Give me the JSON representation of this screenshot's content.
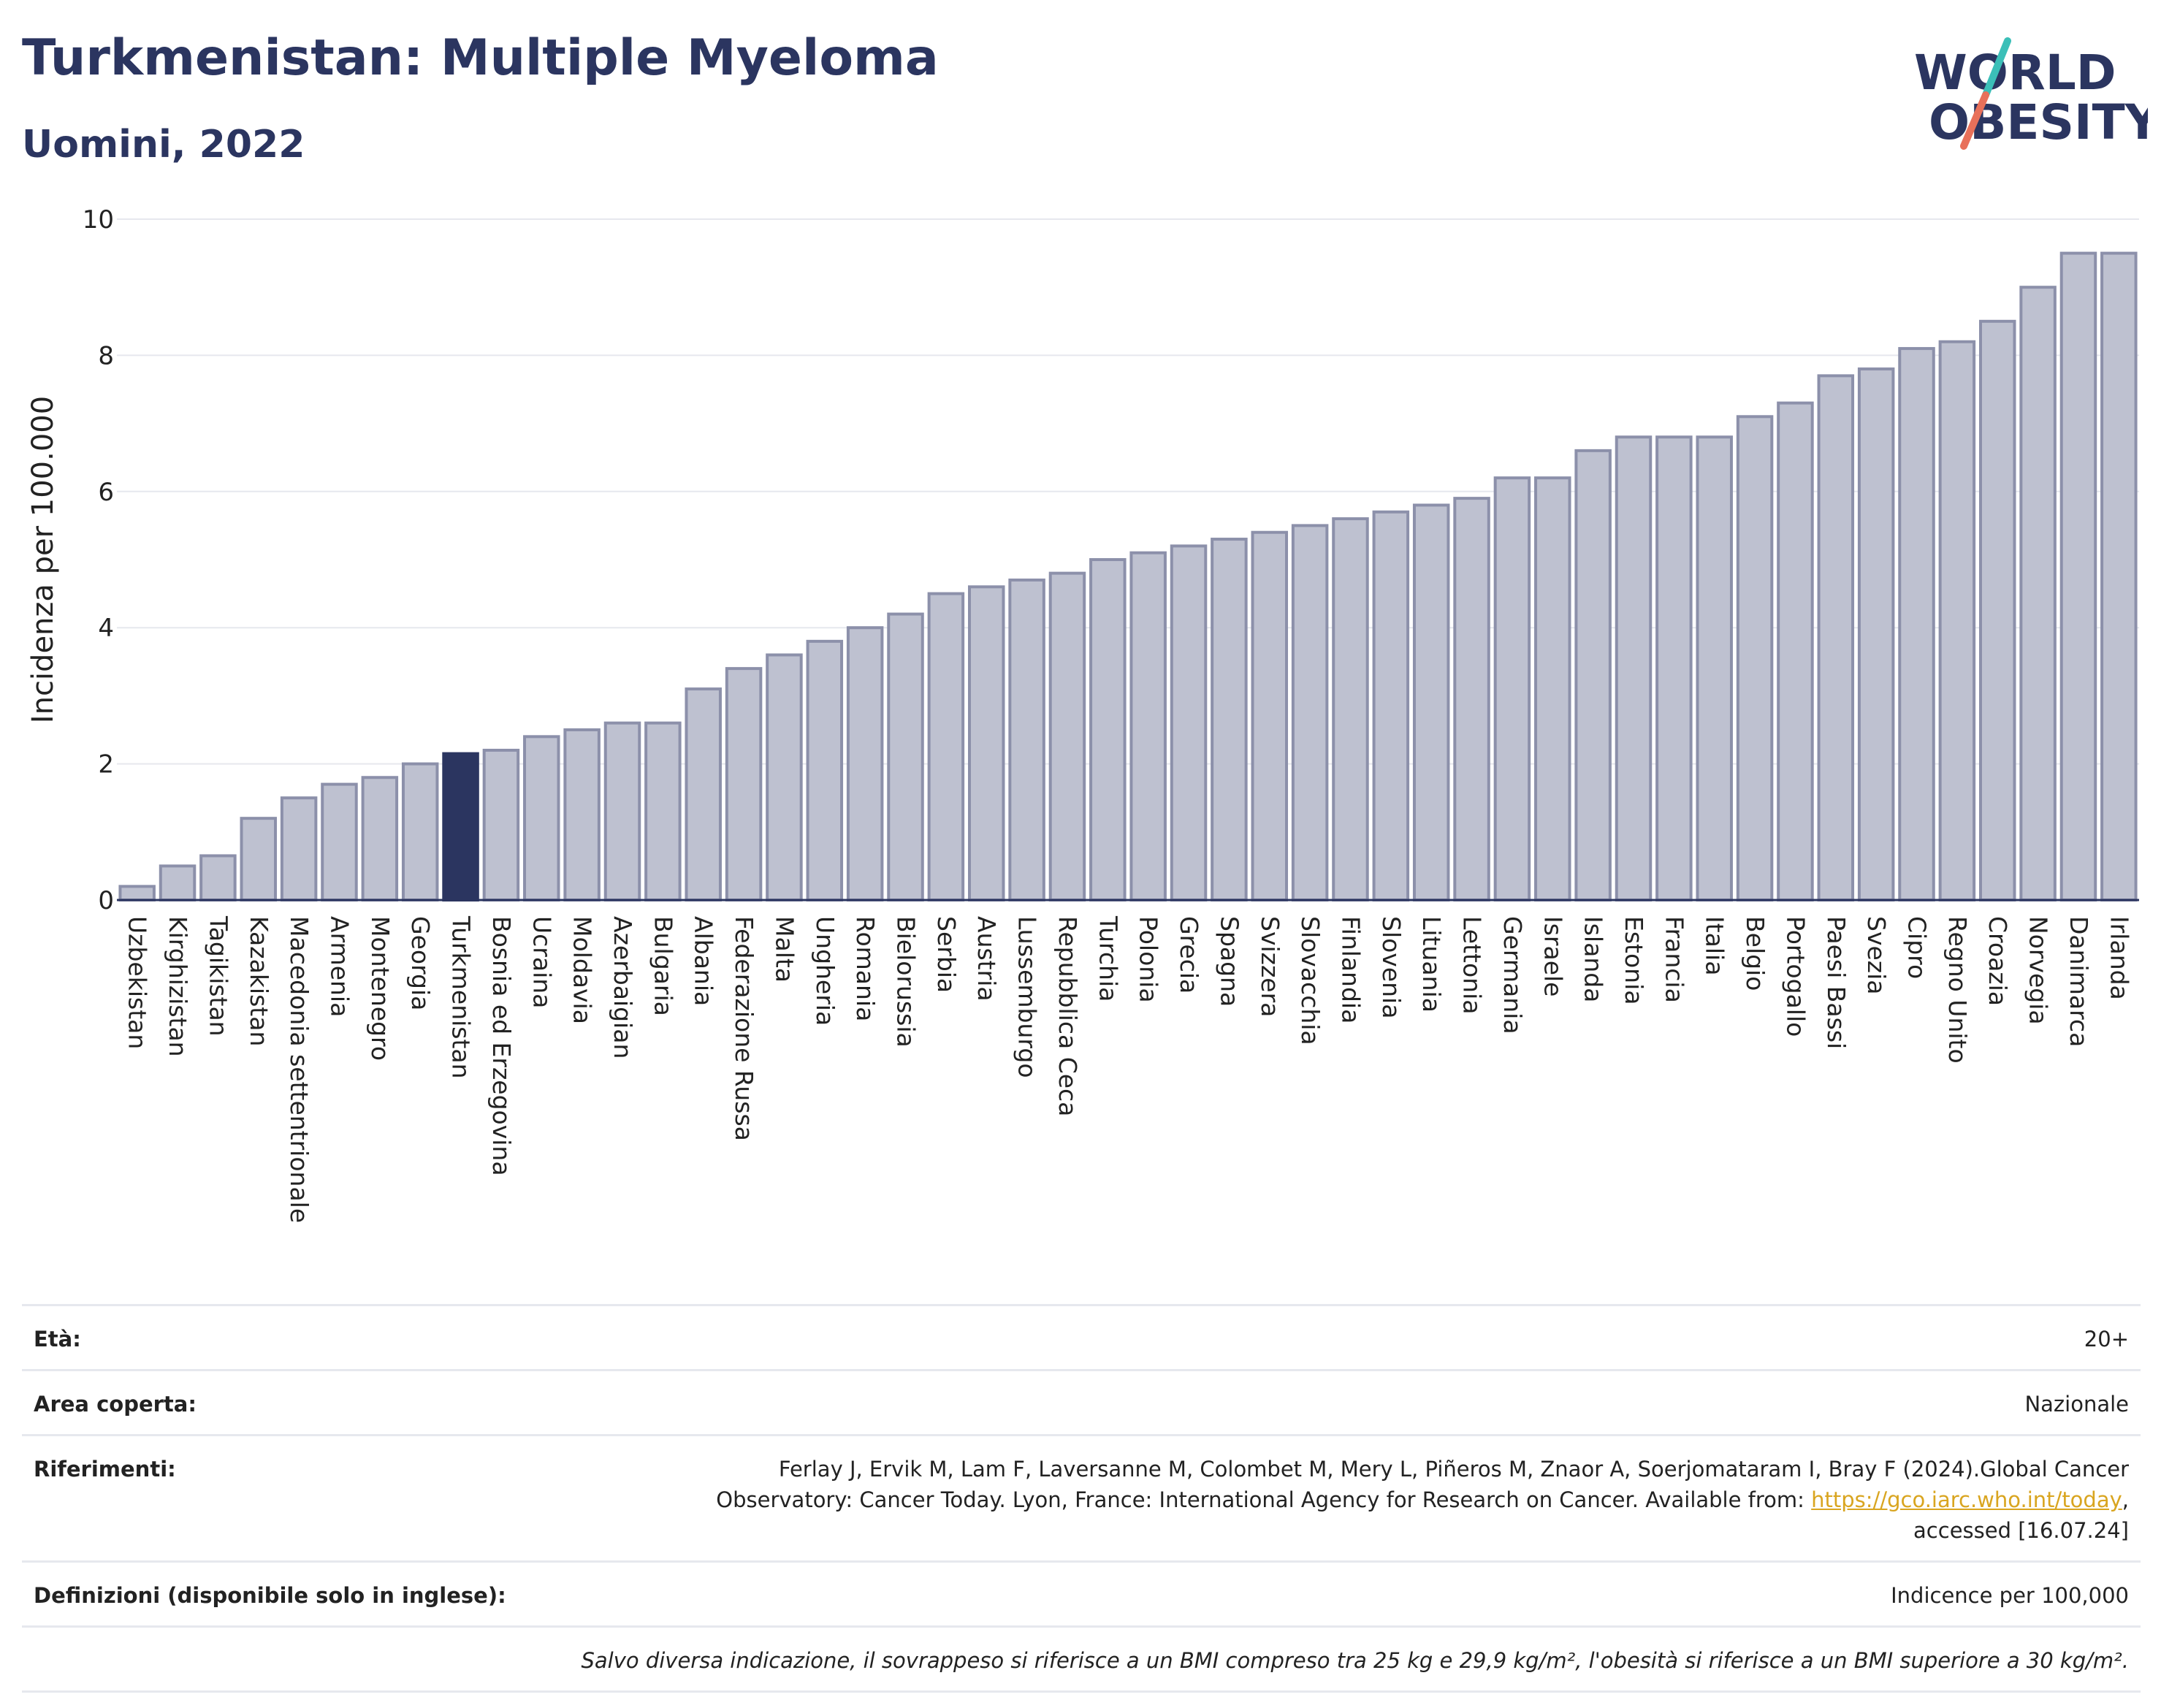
{
  "header": {
    "title": "Turkmenistan: Multiple Myeloma",
    "subtitle": "Uomini, 2022"
  },
  "logo": {
    "line1": "WORLD",
    "line2": "OBESITY"
  },
  "colors": {
    "bar_default": "#bec1d0",
    "bar_border": "#8c90aa",
    "bar_highlight": "#2b3560",
    "title": "#2b3560",
    "link": "#d9a520",
    "logo_slash_teal": "#3bbfb8",
    "logo_slash_red": "#e8705a"
  },
  "chart_data": {
    "type": "bar",
    "ylabel": "Incidenza per 100.000",
    "xlabel": "",
    "ylim": [
      0,
      10
    ],
    "yticks": [
      0,
      2,
      4,
      6,
      8,
      10
    ],
    "grid": true,
    "highlight": "Turkmenistan",
    "categories": [
      "Uzbekistan",
      "Kirghizistan",
      "Tagikistan",
      "Kazakistan",
      "Macedonia settentrionale",
      "Armenia",
      "Montenegro",
      "Georgia",
      "Turkmenistan",
      "Bosnia ed Erzegovina",
      "Ucraina",
      "Moldavia",
      "Azerbaigian",
      "Bulgaria",
      "Albania",
      "Federazione Russa",
      "Malta",
      "Ungheria",
      "Romania",
      "Bielorussia",
      "Serbia",
      "Austria",
      "Lussemburgo",
      "Repubblica Ceca",
      "Turchia",
      "Polonia",
      "Grecia",
      "Spagna",
      "Svizzera",
      "Slovacchia",
      "Finlandia",
      "Slovenia",
      "Lituania",
      "Lettonia",
      "Germania",
      "Israele",
      "Islanda",
      "Estonia",
      "Francia",
      "Italia",
      "Belgio",
      "Portogallo",
      "Paesi Bassi",
      "Svezia",
      "Cipro",
      "Regno Unito",
      "Croazia",
      "Norvegia",
      "Danimarca",
      "Irlanda"
    ],
    "values": [
      0.2,
      0.5,
      0.65,
      1.2,
      1.5,
      1.7,
      1.8,
      2.0,
      2.15,
      2.2,
      2.4,
      2.5,
      2.6,
      2.6,
      3.1,
      3.4,
      3.6,
      3.8,
      4.0,
      4.2,
      4.5,
      4.6,
      4.7,
      4.8,
      5.0,
      5.1,
      5.2,
      5.3,
      5.4,
      5.5,
      5.6,
      5.7,
      5.8,
      5.9,
      6.2,
      6.2,
      6.6,
      6.8,
      6.8,
      6.8,
      7.1,
      7.3,
      7.7,
      7.8,
      8.1,
      8.2,
      8.5,
      9.0,
      9.5,
      9.5
    ]
  },
  "info": {
    "age_label": "Età:",
    "age_value": "20+",
    "area_label": "Area coperta:",
    "area_value": "Nazionale",
    "refs_label": "Riferimenti:",
    "refs_text_1": "Ferlay J, Ervik M, Lam F, Laversanne M, Colombet M, Mery L, Piñeros M, Znaor A, Soerjomataram I, Bray F (2024).Global Cancer",
    "refs_text_2": "Observatory: Cancer Today. Lyon, France: International Agency for Research on Cancer. Available from:",
    "refs_link": "https://gco.iarc.who.int/today",
    "refs_text_3": ",",
    "refs_text_4": "accessed [16.07.24]",
    "defs_label": "Definizioni (disponibile solo in inglese):",
    "defs_value": "Indicence per 100,000",
    "note": "Salvo diversa indicazione, il sovrappeso si riferisce a un BMI compreso tra 25 kg e 29,9 kg/m², l'obesità si riferisce a un BMI superiore a 30 kg/m²."
  }
}
